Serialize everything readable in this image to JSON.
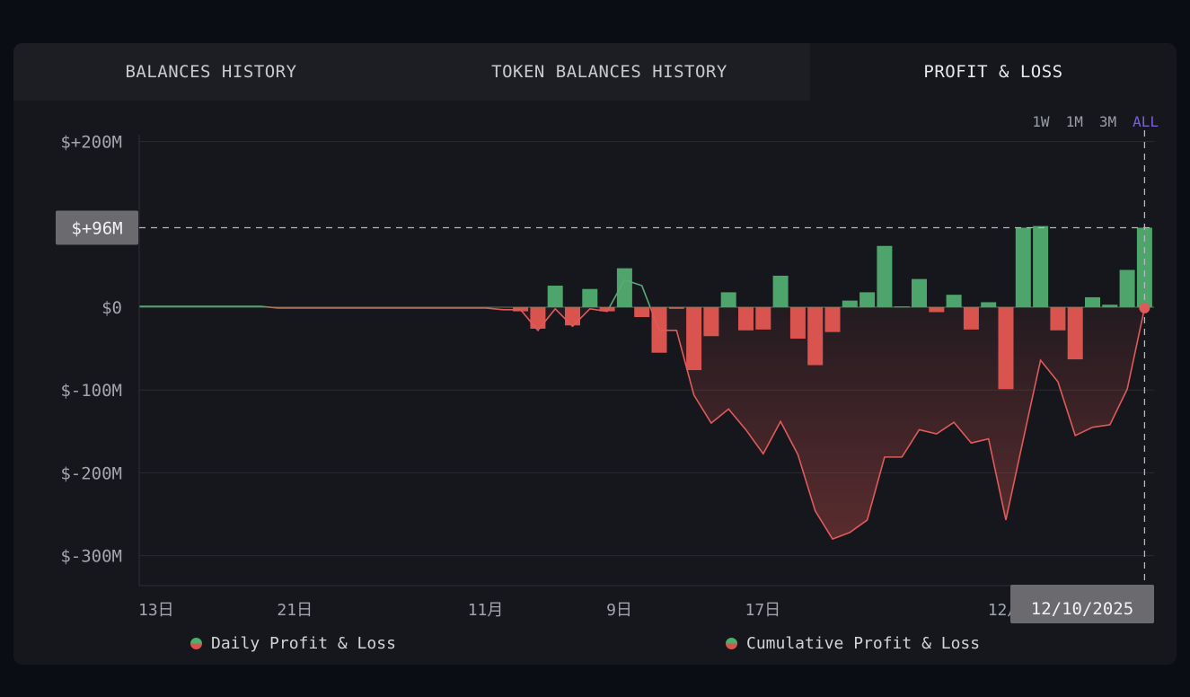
{
  "tabs": [
    {
      "label": "BALANCES HISTORY",
      "active": false
    },
    {
      "label": "TOKEN BALANCES HISTORY",
      "active": false
    },
    {
      "label": "PROFIT & LOSS",
      "active": true
    }
  ],
  "ranges": [
    {
      "label": "1W",
      "selected": false
    },
    {
      "label": "1M",
      "selected": false
    },
    {
      "label": "3M",
      "selected": false
    },
    {
      "label": "ALL",
      "selected": true
    }
  ],
  "colors": {
    "positive": "#4ea56b",
    "negative": "#d9534f",
    "accent": "#7a5fd6"
  },
  "crosshair": {
    "value_label": "$+96M",
    "value": 96,
    "date_label": "12/10/2025"
  },
  "legend": [
    "Daily Profit & Loss",
    "Cumulative Profit & Loss"
  ],
  "chart_data": {
    "type": "bar+line",
    "ylim": [
      -335,
      200
    ],
    "unit": "M USD",
    "grid": true,
    "legend_position": "bottom",
    "y_ticks": [
      {
        "value": 200,
        "label": "$+200M"
      },
      {
        "value": 0,
        "label": "$0"
      },
      {
        "value": -100,
        "label": "$-100M"
      },
      {
        "value": -200,
        "label": "$-200M"
      },
      {
        "value": -300,
        "label": "$-300M"
      }
    ],
    "x_ticks": [
      {
        "date": "2025-10-13",
        "label": "13日"
      },
      {
        "date": "2025-10-21",
        "label": "21日"
      },
      {
        "date": "2025-11-01",
        "label": "11月"
      },
      {
        "date": "2025-11-09",
        "label": "9日"
      },
      {
        "date": "2025-11-17",
        "label": "17日"
      },
      {
        "date": "2025-12-01",
        "label": "12月"
      }
    ],
    "dates": [
      "2025-10-13",
      "2025-10-14",
      "2025-10-15",
      "2025-10-16",
      "2025-10-17",
      "2025-10-18",
      "2025-10-19",
      "2025-10-20",
      "2025-10-21",
      "2025-10-22",
      "2025-10-23",
      "2025-10-24",
      "2025-10-25",
      "2025-10-26",
      "2025-10-27",
      "2025-10-28",
      "2025-10-29",
      "2025-10-30",
      "2025-10-31",
      "2025-11-01",
      "2025-11-02",
      "2025-11-03",
      "2025-11-04",
      "2025-11-05",
      "2025-11-06",
      "2025-11-07",
      "2025-11-08",
      "2025-11-09",
      "2025-11-10",
      "2025-11-11",
      "2025-11-12",
      "2025-11-13",
      "2025-11-14",
      "2025-11-15",
      "2025-11-16",
      "2025-11-17",
      "2025-11-18",
      "2025-11-19",
      "2025-11-20",
      "2025-11-21",
      "2025-11-22",
      "2025-11-23",
      "2025-11-24",
      "2025-11-25",
      "2025-11-26",
      "2025-11-27",
      "2025-11-28",
      "2025-11-29",
      "2025-11-30",
      "2025-12-01",
      "2025-12-02",
      "2025-12-03",
      "2025-12-04",
      "2025-12-05",
      "2025-12-06",
      "2025-12-07",
      "2025-12-08",
      "2025-12-09",
      "2025-12-10"
    ],
    "series": [
      {
        "name": "Daily Profit & Loss",
        "type": "bar",
        "values": [
          0,
          0,
          0,
          0,
          0,
          0,
          0,
          0,
          0,
          0,
          0,
          0,
          0,
          0,
          0,
          0,
          0,
          0,
          0,
          0,
          0,
          0,
          -5,
          -26,
          26,
          -22,
          22,
          -5,
          47,
          -12,
          -55,
          -2,
          -76,
          -35,
          18,
          -28,
          -27,
          38,
          -38,
          -70,
          -30,
          8,
          18,
          74,
          1,
          34,
          -6,
          15,
          -27,
          6,
          -99,
          96,
          98,
          -28,
          -63,
          12,
          3,
          45,
          96
        ]
      },
      {
        "name": "Cumulative Profit & Loss",
        "type": "line",
        "values": [
          1,
          1,
          1,
          1,
          1,
          1,
          1,
          1,
          -1,
          -1,
          -1,
          -1,
          -1,
          -1,
          -1,
          -1,
          -1,
          -1,
          -1,
          -1,
          -1,
          -3,
          -3,
          -28,
          -2,
          -23,
          -2,
          -5,
          33,
          26,
          -28,
          -28,
          -106,
          -140,
          -123,
          -148,
          -177,
          -138,
          -178,
          -246,
          -280,
          -272,
          -257,
          -181,
          -181,
          -148,
          -153,
          -139,
          -164,
          -159,
          -257,
          -160,
          -64,
          -90,
          -155,
          -145,
          -142,
          -99,
          -1
        ]
      }
    ]
  }
}
